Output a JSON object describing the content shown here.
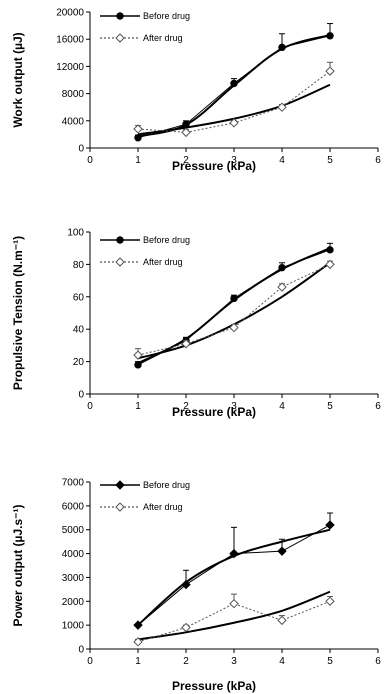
{
  "chart_data": [
    {
      "type": "line",
      "title": "",
      "xlabel": "Pressure (kPa)",
      "ylabel": "Work output (µJ)",
      "xlim": [
        0,
        6
      ],
      "ylim": [
        0,
        20000
      ],
      "xticks": [
        "0",
        "1",
        "2",
        "3",
        "4",
        "5",
        "6"
      ],
      "yticks": [
        "0",
        "4000",
        "8000",
        "12000",
        "16000",
        "20000"
      ],
      "grid": false,
      "legend": "top-left",
      "x": [
        1,
        2,
        3,
        4,
        5
      ],
      "series": [
        {
          "name": "Before drug",
          "marker": "filled-circle",
          "line": "solid",
          "values": [
            1500,
            3500,
            9500,
            14800,
            16500
          ],
          "errors": [
            400,
            500,
            700,
            2000,
            1800
          ],
          "fit": [
            1700,
            3400,
            9200,
            14600,
            16600
          ]
        },
        {
          "name": "After drug",
          "marker": "open-diamond",
          "line": "dotted",
          "values": [
            2800,
            2300,
            3700,
            6000,
            11300
          ],
          "errors": [
            500,
            400,
            300,
            400,
            1300
          ],
          "fit": [
            2000,
            3000,
            4300,
            6200,
            9300
          ]
        }
      ]
    },
    {
      "type": "line",
      "title": "",
      "xlabel": "Pressure (kPa)",
      "ylabel": "Propulsive Tension (N.m⁻¹)",
      "xlim": [
        0,
        6
      ],
      "ylim": [
        0,
        100
      ],
      "xticks": [
        "0",
        "1",
        "2",
        "3",
        "4",
        "5",
        "6"
      ],
      "yticks": [
        "0",
        "20",
        "40",
        "60",
        "80",
        "100"
      ],
      "grid": false,
      "legend": "top-left",
      "x": [
        1,
        2,
        3,
        4,
        5
      ],
      "series": [
        {
          "name": "Before drug",
          "marker": "filled-circle",
          "line": "solid",
          "values": [
            18,
            33,
            59,
            78,
            89
          ],
          "errors": [
            2,
            2,
            2,
            3,
            4
          ],
          "fit": [
            19,
            34,
            58,
            77,
            90
          ]
        },
        {
          "name": "After drug",
          "marker": "open-diamond",
          "line": "dotted",
          "values": [
            24,
            31,
            41,
            66,
            80
          ],
          "errors": [
            4,
            2,
            2,
            2,
            2
          ],
          "fit": [
            22,
            30,
            43,
            60,
            81
          ]
        }
      ]
    },
    {
      "type": "line",
      "title": "",
      "xlabel": "Pressure (kPa)",
      "ylabel": "Power output (µJ.s⁻¹)",
      "xlim": [
        0,
        6
      ],
      "ylim": [
        0,
        7000
      ],
      "xticks": [
        "0",
        "1",
        "2",
        "3",
        "4",
        "5",
        "6"
      ],
      "yticks": [
        "0",
        "1000",
        "2000",
        "3000",
        "4000",
        "5000",
        "6000",
        "7000"
      ],
      "grid": false,
      "legend": "top-left",
      "x": [
        1,
        2,
        3,
        4,
        5
      ],
      "series": [
        {
          "name": "Before drug",
          "marker": "filled-diamond",
          "line": "solid",
          "values": [
            1000,
            2700,
            4000,
            4100,
            5200
          ],
          "errors": [
            0,
            600,
            1100,
            500,
            500
          ],
          "fit": [
            1000,
            2800,
            3900,
            4500,
            5000
          ]
        },
        {
          "name": "After drug",
          "marker": "open-diamond",
          "line": "dotted",
          "values": [
            300,
            900,
            1900,
            1200,
            2000
          ],
          "errors": [
            100,
            100,
            400,
            200,
            200
          ],
          "fit": [
            400,
            700,
            1100,
            1600,
            2400
          ]
        }
      ]
    }
  ]
}
